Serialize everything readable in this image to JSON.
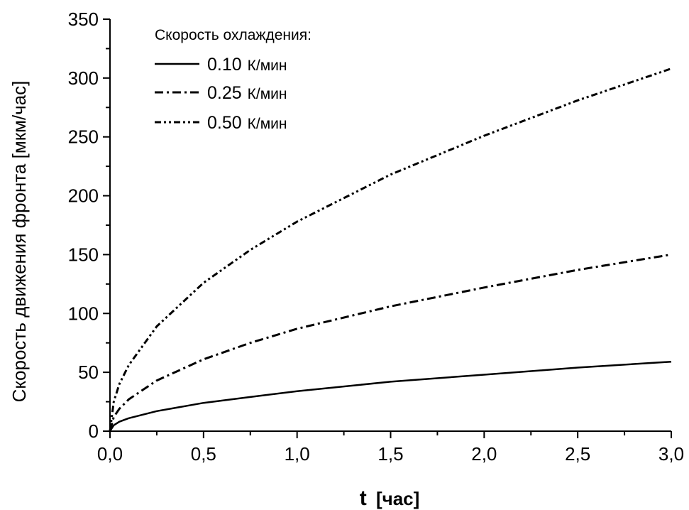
{
  "chart_data": {
    "type": "line",
    "xlabel": "t",
    "xunit": "[час]",
    "ylabel": "Скорость движения фронта [мкм/час]",
    "xlim": [
      0,
      3.0
    ],
    "ylim": [
      0,
      350
    ],
    "x_ticks": [
      "0,0",
      "0,5",
      "1,0",
      "1,5",
      "2,0",
      "2,5",
      "3,0"
    ],
    "y_ticks": [
      "0",
      "50",
      "100",
      "150",
      "200",
      "250",
      "300",
      "350"
    ],
    "grid": false,
    "legend_position": "top-left",
    "legend_title": "Скорость охлаждения:",
    "series": [
      {
        "name": "0.10 К/мин",
        "label_value": "0.10",
        "label_unit": "К/мин",
        "dash": "solid",
        "x": [
          0,
          0.02,
          0.05,
          0.1,
          0.25,
          0.5,
          0.75,
          1.0,
          1.5,
          2.0,
          2.5,
          3.0
        ],
        "values": [
          0,
          5,
          8,
          11,
          17,
          24,
          29,
          34,
          42,
          48,
          54,
          59
        ]
      },
      {
        "name": "0.25 К/мин",
        "label_value": "0.25",
        "label_unit": "К/мин",
        "dash": "dash-dot",
        "x": [
          0,
          0.02,
          0.05,
          0.1,
          0.25,
          0.5,
          0.75,
          1.0,
          1.5,
          2.0,
          2.5,
          3.0
        ],
        "values": [
          0,
          12,
          19,
          27,
          43,
          61,
          75,
          87,
          106,
          122,
          137,
          150
        ]
      },
      {
        "name": "0.50 К/мин",
        "label_value": "0.50",
        "label_unit": "К/мин",
        "dash": "dash-dot-dot",
        "x": [
          0,
          0.02,
          0.05,
          0.1,
          0.25,
          0.5,
          0.75,
          1.0,
          1.5,
          2.0,
          2.5,
          3.0
        ],
        "values": [
          0,
          25,
          40,
          56,
          89,
          126,
          154,
          178,
          218,
          251,
          281,
          308
        ]
      }
    ]
  }
}
